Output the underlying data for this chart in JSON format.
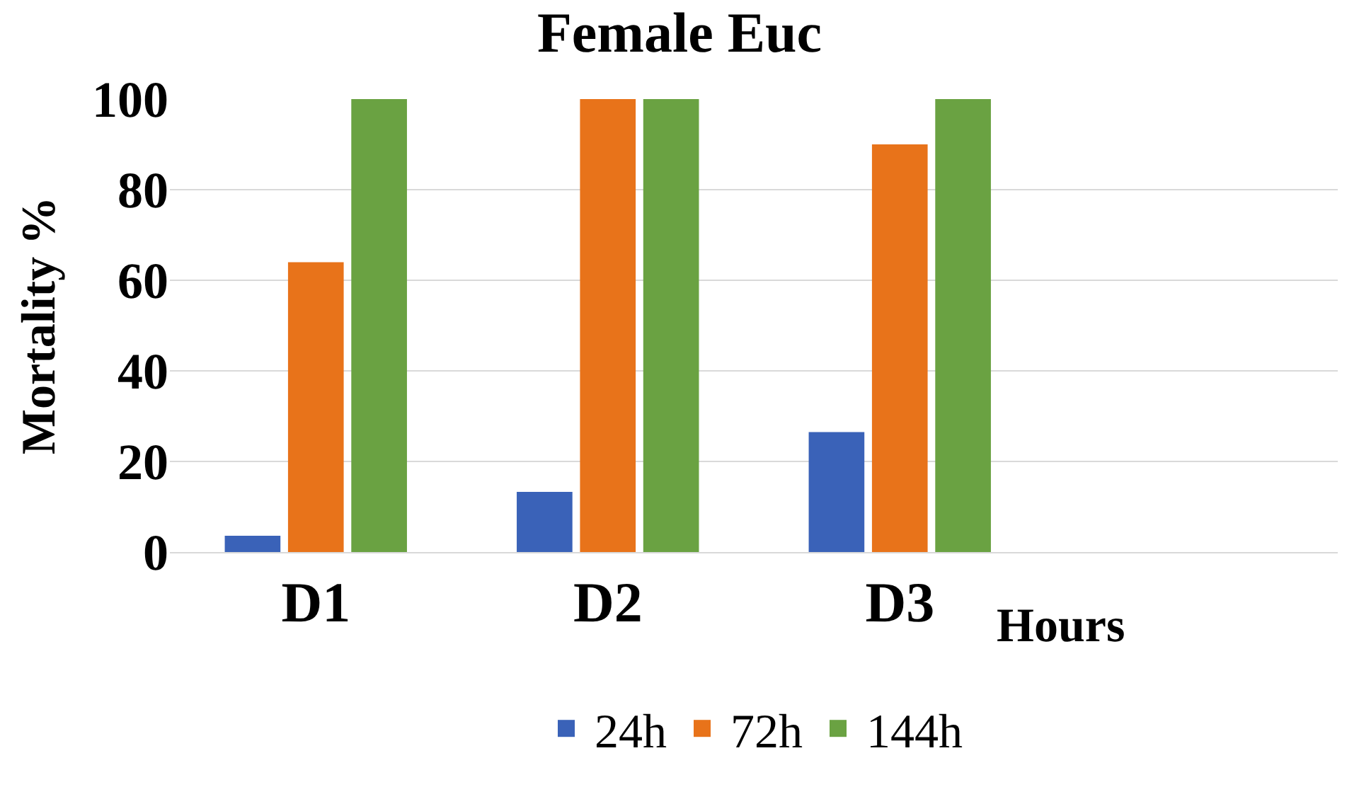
{
  "chart_data": {
    "type": "bar",
    "title": "Female Euc",
    "xlabel": "Hours",
    "ylabel": "Mortality %",
    "categories": [
      "D1",
      "D2",
      "D3",
      null
    ],
    "series": [
      {
        "name": "24h",
        "color": "#3a62b8",
        "values": [
          3.6,
          13.3,
          26.5,
          null
        ]
      },
      {
        "name": "72h",
        "color": "#e8731a",
        "values": [
          64,
          100,
          90,
          null
        ]
      },
      {
        "name": "144h",
        "color": "#6aa242",
        "values": [
          100,
          100,
          100,
          null
        ]
      }
    ],
    "ylim": [
      0,
      100
    ],
    "yticks": [
      0,
      20,
      40,
      60,
      80,
      100
    ],
    "grid": "y",
    "legend": "bottom"
  }
}
